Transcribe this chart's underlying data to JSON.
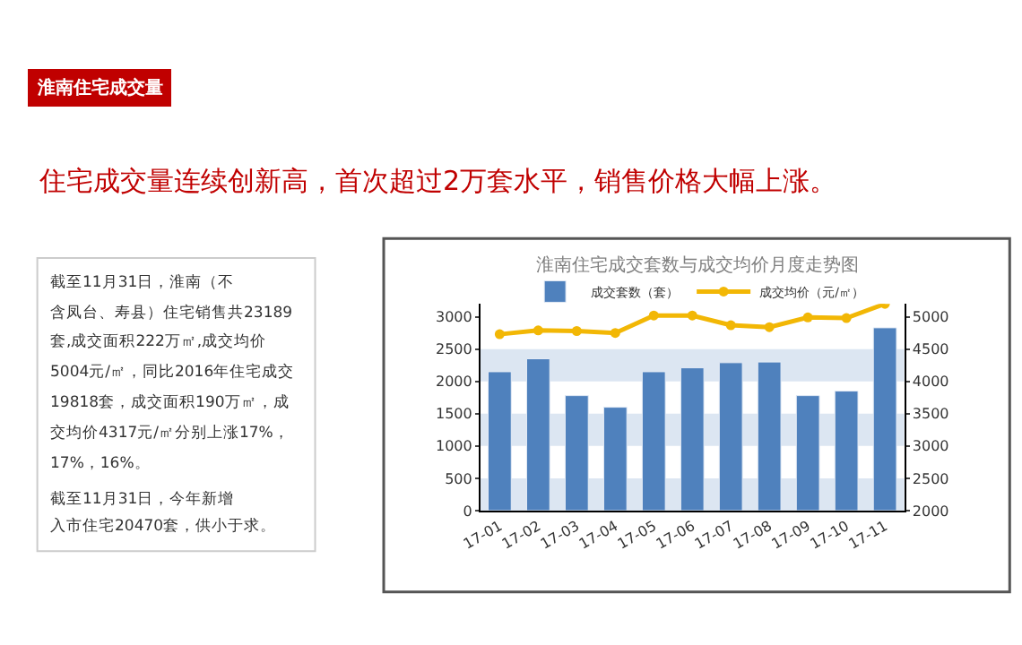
{
  "chart_data": [
    {
      "type": "other",
      "title": "淮南住宅成交量",
      "subtitle": "住宅成交量连续创新高，首次超过2万套水平，销售价格大幅上涨。",
      "annotations": [
        "截至11月31日，淮南（不",
        "含凤台、寿县）住宅销售共23189",
        "套,成交面积222万㎡,成交均价",
        "5004元/㎡，同比2016年住宅成交",
        "19818套，成交面积190万㎡，成",
        "交均价4317元/㎡分别上涨17%，",
        "17%，16%。",
        "截至11月31日，今年新增",
        "入市住宅20470套，供小于求。"
      ]
    },
    {
      "type": "bar",
      "title": "淮南住宅成交套数与成交均价月度走势图",
      "categories": [
        "17-01",
        "17-02",
        "17-03",
        "17-04",
        "17-05",
        "17-06",
        "17-07",
        "17-08",
        "17-09",
        "17-10",
        "17-11"
      ],
      "series": [
        {
          "name": "成交套数（套）",
          "type": "bar",
          "color": "#4f81bd",
          "values": [
            2150,
            2350,
            1780,
            1600,
            2150,
            2210,
            2290,
            2300,
            1780,
            1850,
            2830
          ]
        },
        {
          "name": "成交均价（元/㎡）",
          "type": "line",
          "axis": "y2",
          "color": "#f2b705",
          "marker": "circle",
          "values": [
            4730,
            4790,
            4780,
            4750,
            5020,
            5020,
            4870,
            4840,
            4990,
            4980,
            5200
          ]
        }
      ],
      "ylim": [
        0,
        3200
      ],
      "yticks": [
        0,
        500,
        1000,
        1500,
        2000,
        2500,
        3000
      ],
      "y2lim": [
        2000,
        5200
      ],
      "y2ticks": [
        2000,
        2500,
        3000,
        3500,
        4000,
        4500,
        5000
      ],
      "bands": [
        {
          "axis": "y",
          "from": 0,
          "to": 500,
          "color": "#dce6f2"
        },
        {
          "axis": "y",
          "from": 1000,
          "to": 1500,
          "color": "#dce6f2"
        },
        {
          "axis": "y",
          "from": 2000,
          "to": 2500,
          "color": "#dce6f2"
        }
      ],
      "grid": false,
      "legend": "top"
    }
  ]
}
